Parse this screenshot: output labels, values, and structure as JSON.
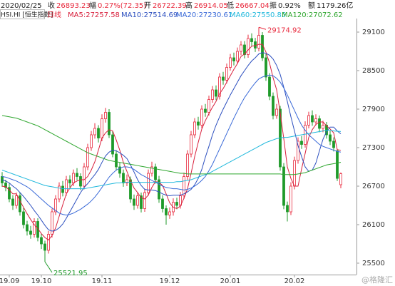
{
  "header": {
    "items": [
      {
        "label": "2020/02/25",
        "value": null
      },
      {
        "label": "收",
        "value": "26893.23"
      },
      {
        "label": "幅",
        "value": "0.27%(72.35)"
      },
      {
        "label": "开",
        "value": "26722.39"
      },
      {
        "label": "高",
        "value": "26914.05"
      },
      {
        "label": "低",
        "value": "26667.04"
      },
      {
        "label": "振",
        "value": "0.92%"
      },
      {
        "label": "额",
        "value": "1179.26亿"
      }
    ],
    "symbol": "HSI.HI [恒生指数]",
    "period": "日线"
  },
  "chart_data": {
    "type": "candlestick",
    "categories": [
      null,
      null,
      "19.09",
      null,
      null,
      null,
      null,
      null,
      null,
      null,
      null,
      "19.10",
      null,
      null,
      null,
      null,
      null,
      null,
      null,
      null,
      null,
      null,
      null,
      null,
      null,
      null,
      null,
      null,
      "19.11",
      null,
      null,
      null,
      null,
      null,
      null,
      null,
      null,
      null,
      null,
      null,
      null,
      null,
      null,
      null,
      null,
      null,
      null,
      "19.12",
      null,
      null,
      null,
      null,
      null,
      null,
      null,
      null,
      null,
      null,
      null,
      null,
      null,
      null,
      null,
      null,
      "20.01",
      null,
      null,
      null,
      null,
      null,
      null,
      null,
      null,
      null,
      null,
      null,
      null,
      null,
      null,
      null,
      null,
      null,
      "20.02",
      null,
      null,
      null,
      null,
      null,
      null,
      null,
      null,
      null,
      null,
      null,
      null,
      null
    ],
    "open": [
      26850,
      26750,
      26680,
      26500,
      26400,
      26550,
      26300,
      26100,
      26000,
      25950,
      26150,
      25900,
      25800,
      25700,
      25950,
      26300,
      26500,
      26700,
      26600,
      26800,
      26750,
      26900,
      26850,
      26700,
      27000,
      27300,
      27500,
      27600,
      27450,
      27750,
      27850,
      27500,
      27200,
      27000,
      26900,
      26750,
      26800,
      26500,
      26400,
      26550,
      26350,
      26600,
      26900,
      27000,
      26800,
      26500,
      26350,
      26250,
      26300,
      26450,
      26400,
      26550,
      26850,
      27200,
      27500,
      27700,
      27650,
      27900,
      27850,
      28050,
      28200,
      28100,
      28400,
      28350,
      28550,
      28700,
      28650,
      28800,
      28900,
      28750,
      29000,
      28950,
      28850,
      29050,
      28700,
      28400,
      28100,
      27800,
      27900,
      27000,
      26400,
      26300,
      26700,
      27100,
      27400,
      27350,
      27650,
      27800,
      27700,
      27750,
      27600,
      27650,
      27500,
      27400,
      27250,
      26722.39
    ],
    "high": [
      26920,
      26800,
      26740,
      26560,
      26600,
      26600,
      26360,
      26160,
      26080,
      26200,
      26200,
      25960,
      25850,
      26000,
      26350,
      26560,
      26760,
      26780,
      26860,
      26870,
      26960,
      26980,
      26900,
      27060,
      27360,
      27560,
      27680,
      27650,
      27820,
      27920,
      27900,
      27560,
      27260,
      27070,
      26960,
      26880,
      26850,
      26570,
      26610,
      26600,
      26660,
      26960,
      27080,
      27050,
      26860,
      26560,
      26400,
      26370,
      26510,
      26520,
      26610,
      26910,
      27260,
      27560,
      27760,
      27780,
      27960,
      27980,
      28110,
      28260,
      28270,
      28460,
      28480,
      28610,
      28760,
      28780,
      28860,
      28960,
      28960,
      29060,
      29080,
      29010,
      29174.92,
      29100,
      28760,
      28460,
      28160,
      27980,
      27950,
      27060,
      26460,
      26760,
      27160,
      27460,
      27480,
      27710,
      27860,
      27880,
      27820,
      27800,
      27720,
      27700,
      27560,
      27460,
      27280,
      26914.05
    ],
    "low": [
      26690,
      26620,
      26450,
      26330,
      26350,
      26240,
      26040,
      25930,
      25880,
      25900,
      25840,
      25720,
      25521.95,
      25650,
      25900,
      26250,
      26450,
      26540,
      26550,
      26680,
      26700,
      26790,
      26640,
      26650,
      26950,
      27250,
      27440,
      27380,
      27400,
      27690,
      27450,
      27150,
      26940,
      26830,
      26690,
      26700,
      26440,
      26330,
      26350,
      26290,
      26300,
      26550,
      26850,
      26740,
      26440,
      26290,
      26100,
      26190,
      26240,
      26340,
      26350,
      26500,
      26800,
      27150,
      27450,
      27580,
      27600,
      27780,
      27800,
      28000,
      28040,
      28050,
      28280,
      28300,
      28500,
      28580,
      28600,
      28740,
      28690,
      28700,
      28880,
      28790,
      28800,
      28650,
      28340,
      28040,
      27740,
      27750,
      26940,
      26340,
      26150,
      26250,
      26650,
      27050,
      27280,
      27300,
      27600,
      27640,
      27650,
      27540,
      27540,
      27440,
      27340,
      27240,
      26780,
      26667.04
    ],
    "close": [
      26750,
      26680,
      26500,
      26400,
      26550,
      26300,
      26100,
      26000,
      25950,
      26150,
      25900,
      25800,
      25700,
      25950,
      26300,
      26500,
      26700,
      26600,
      26800,
      26750,
      26900,
      26850,
      26700,
      27000,
      27300,
      27500,
      27600,
      27450,
      27750,
      27850,
      27500,
      27200,
      27000,
      26900,
      26750,
      26800,
      26500,
      26400,
      26550,
      26350,
      26600,
      26900,
      27000,
      26800,
      26500,
      26350,
      26250,
      26300,
      26450,
      26400,
      26550,
      26850,
      27200,
      27500,
      27700,
      27650,
      27900,
      27850,
      28050,
      28200,
      28100,
      28400,
      28350,
      28550,
      28700,
      28650,
      28800,
      28900,
      28750,
      29000,
      28950,
      28850,
      29050,
      28700,
      28400,
      28100,
      27800,
      27900,
      27000,
      26400,
      26300,
      26700,
      27100,
      27400,
      27350,
      27650,
      27800,
      27700,
      27750,
      27600,
      27650,
      27500,
      27400,
      27300,
      26820.88,
      26893.23
    ],
    "up_color": "#e8283c",
    "down_color": "#1f9a2a",
    "series": [
      {
        "name": "MA5:27257.58",
        "color": "#d8203c",
        "values": [
          26700,
          26690,
          26640,
          26580,
          26580,
          26470,
          26370,
          26270,
          26180,
          26100,
          26040,
          25960,
          25900,
          25860,
          25930,
          26050,
          26230,
          26410,
          26580,
          26670,
          26750,
          26780,
          26800,
          26800,
          26850,
          26950,
          27080,
          27260,
          27450,
          27530,
          27580,
          27560,
          27420,
          27260,
          27070,
          26930,
          26790,
          26670,
          26600,
          26520,
          26500,
          26560,
          26680,
          26770,
          26760,
          26710,
          26580,
          26440,
          26370,
          26350,
          26390,
          26510,
          26660,
          26900,
          27160,
          27380,
          27590,
          27720,
          27830,
          27930,
          28020,
          28140,
          28220,
          28320,
          28420,
          28520,
          28610,
          28720,
          28760,
          28820,
          28880,
          28890,
          28910,
          28910,
          28790,
          28620,
          28390,
          28200,
          27840,
          27440,
          27000,
          26820,
          26700,
          26700,
          26970,
          27210,
          27460,
          27580,
          27660,
          27700,
          27700,
          27640,
          27590,
          27530,
          27270,
          27257.58
        ]
      },
      {
        "name": "MA10:27514.69",
        "color": "#2c4fbf",
        "values": [
          26800,
          26780,
          26750,
          26700,
          26660,
          26600,
          26540,
          26470,
          26400,
          26320,
          26250,
          26170,
          26090,
          26020,
          26000,
          26010,
          26050,
          26110,
          26200,
          26300,
          26400,
          26500,
          26600,
          26680,
          26740,
          26810,
          26880,
          26960,
          27070,
          27170,
          27230,
          27260,
          27250,
          27220,
          27180,
          27130,
          27030,
          26920,
          26800,
          26710,
          26650,
          26640,
          26640,
          26630,
          26610,
          26580,
          26560,
          26550,
          26560,
          26560,
          26560,
          26580,
          26610,
          26650,
          26720,
          26820,
          26960,
          27150,
          27320,
          27500,
          27650,
          27780,
          27900,
          28010,
          28120,
          28220,
          28320,
          28420,
          28500,
          28580,
          28650,
          28700,
          28760,
          28780,
          28770,
          28740,
          28680,
          28580,
          28440,
          28240,
          28020,
          27780,
          27560,
          27330,
          27160,
          27000,
          26930,
          26950,
          27060,
          27250,
          27430,
          27550,
          27620,
          27620,
          27560,
          27514.69
        ]
      },
      {
        "name": "MA20:27230.61",
        "color": "#3a6ad8",
        "values": [
          26850,
          26840,
          26820,
          26800,
          26780,
          26750,
          26720,
          26690,
          26650,
          26600,
          26550,
          26500,
          26450,
          26400,
          26360,
          26320,
          26280,
          26260,
          26250,
          26260,
          26280,
          26310,
          26340,
          26380,
          26420,
          26470,
          26530,
          26600,
          26680,
          26760,
          26840,
          26900,
          26950,
          26980,
          27000,
          27000,
          26990,
          26960,
          26920,
          26880,
          26850,
          26820,
          26790,
          26760,
          26730,
          26700,
          26680,
          26670,
          26660,
          26660,
          26650,
          26640,
          26650,
          26670,
          26700,
          26740,
          26790,
          26850,
          26940,
          27040,
          27160,
          27280,
          27400,
          27520,
          27640,
          27760,
          27870,
          27980,
          28080,
          28160,
          28240,
          28310,
          28370,
          28400,
          28420,
          28430,
          28420,
          28380,
          28320,
          28230,
          28120,
          28000,
          27880,
          27760,
          27650,
          27570,
          27500,
          27450,
          27400,
          27350,
          27320,
          27300,
          27280,
          27260,
          27240,
          27230.61
        ]
      },
      {
        "name": "MA60:27550.85",
        "color": "#1fb8dc",
        "values": [
          26950,
          26930,
          26910,
          26890,
          26870,
          26850,
          26830,
          26810,
          26790,
          26770,
          26750,
          26730,
          26710,
          26700,
          26690,
          26680,
          26670,
          26660,
          26660,
          26660,
          26660,
          26660,
          26660,
          26660,
          26670,
          26680,
          26690,
          26700,
          26710,
          26720,
          26730,
          26740,
          26750,
          26750,
          26760,
          26760,
          26760,
          26760,
          26760,
          26760,
          26760,
          26760,
          26760,
          26760,
          26760,
          26760,
          26760,
          26760,
          26760,
          26770,
          26770,
          26780,
          26790,
          26800,
          26820,
          26840,
          26860,
          26880,
          26900,
          26930,
          26960,
          26990,
          27020,
          27050,
          27080,
          27110,
          27140,
          27170,
          27200,
          27230,
          27260,
          27290,
          27320,
          27350,
          27380,
          27400,
          27420,
          27440,
          27450,
          27460,
          27460,
          27470,
          27480,
          27490,
          27500,
          27510,
          27520,
          27530,
          27540,
          27550,
          27560,
          27570,
          27570,
          27560,
          27555,
          27550.85
        ]
      },
      {
        "name": "MA120:27072.62",
        "color": "#2ea62e",
        "values": [
          27800,
          27790,
          27780,
          27770,
          27760,
          27740,
          27720,
          27700,
          27680,
          27660,
          27640,
          27610,
          27580,
          27550,
          27520,
          27490,
          27460,
          27430,
          27400,
          27370,
          27340,
          27310,
          27280,
          27250,
          27220,
          27200,
          27180,
          27160,
          27140,
          27120,
          27100,
          27090,
          27080,
          27070,
          27060,
          27050,
          27040,
          27030,
          27020,
          27010,
          27000,
          26990,
          26980,
          26970,
          26960,
          26950,
          26940,
          26930,
          26920,
          26910,
          26900,
          26900,
          26890,
          26890,
          26890,
          26890,
          26890,
          26890,
          26890,
          26890,
          26890,
          26890,
          26890,
          26890,
          26890,
          26890,
          26890,
          26890,
          26890,
          26890,
          26890,
          26890,
          26890,
          26890,
          26890,
          26890,
          26890,
          26890,
          26890,
          26880,
          26880,
          26880,
          26880,
          26890,
          26900,
          26910,
          26930,
          26950,
          26970,
          26990,
          27010,
          27030,
          27040,
          27050,
          27060,
          27072.62
        ]
      }
    ],
    "max_label": "29174.92",
    "min_label": "25521.95",
    "ylim": [
      25322,
      29289
    ],
    "yticks": [
      25500,
      26100,
      26700,
      27300,
      27900,
      28500,
      29100
    ],
    "watermark": "@格隆汇"
  }
}
